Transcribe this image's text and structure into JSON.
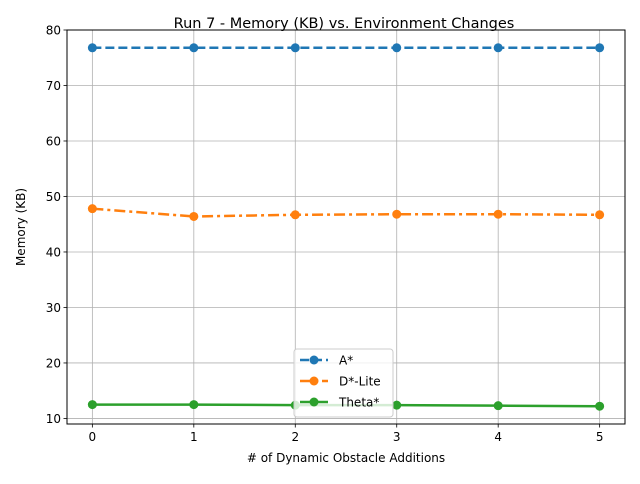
{
  "chart_data": {
    "type": "line",
    "title": "Run 7 - Memory (KB) vs. Environment Changes",
    "xlabel": "# of Dynamic Obstacle Additions",
    "ylabel": "Memory (KB)",
    "x": [
      0,
      1,
      2,
      3,
      4,
      5
    ],
    "xticks": [
      "0",
      "1",
      "2",
      "3",
      "4",
      "5"
    ],
    "yticks": [
      "10",
      "20",
      "30",
      "40",
      "50",
      "60",
      "70",
      "80"
    ],
    "xlim": [
      -0.25,
      5.25
    ],
    "ylim": [
      9,
      80
    ],
    "grid": true,
    "legend_position": "lower-center",
    "series": [
      {
        "name": "A*",
        "color": "#1f77b4",
        "dash": "dashed",
        "values": [
          76.8,
          76.8,
          76.8,
          76.8,
          76.8,
          76.8
        ]
      },
      {
        "name": "D*-Lite",
        "color": "#ff7f0e",
        "dash": "dashdot",
        "values": [
          47.8,
          46.4,
          46.7,
          46.8,
          46.8,
          46.7
        ]
      },
      {
        "name": "Theta*",
        "color": "#2ca02c",
        "dash": "solid",
        "values": [
          12.5,
          12.5,
          12.4,
          12.4,
          12.3,
          12.2
        ]
      }
    ]
  }
}
